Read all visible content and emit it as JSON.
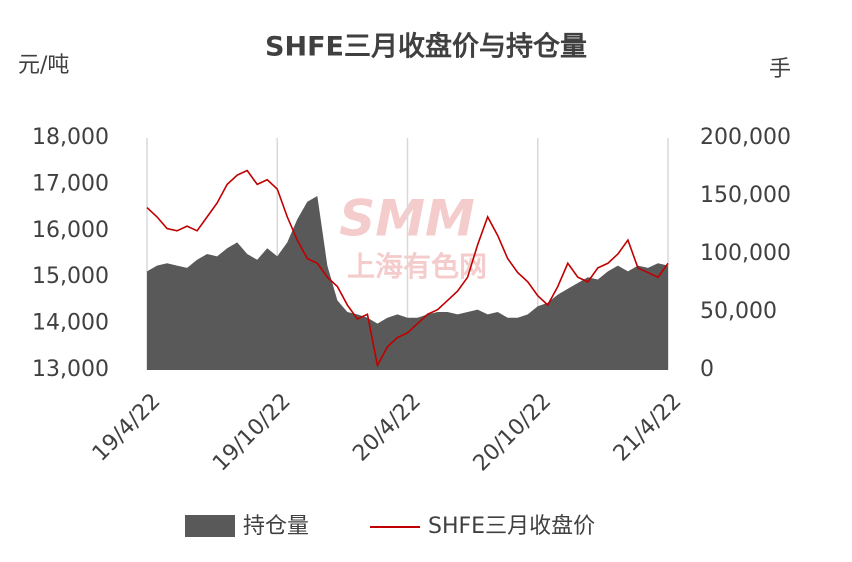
{
  "chart_data": {
    "type": "dual-area-line",
    "title": "SHFE三月收盘价与持仓量",
    "ylabel": "元/吨",
    "y2label": "手",
    "watermark": [
      "SMM",
      "上海有色网"
    ],
    "categories": [
      "19/4/22",
      null,
      null,
      null,
      null,
      null,
      null,
      null,
      null,
      null,
      null,
      null,
      null,
      "19/10/22",
      null,
      null,
      null,
      null,
      null,
      null,
      null,
      null,
      null,
      null,
      null,
      null,
      "20/4/22",
      null,
      null,
      null,
      null,
      null,
      null,
      null,
      null,
      null,
      null,
      null,
      null,
      "20/10/22",
      null,
      null,
      null,
      null,
      null,
      null,
      null,
      null,
      null,
      null,
      null,
      null,
      "21/4/22"
    ],
    "series": [
      {
        "name": "持仓量",
        "kind": "area",
        "axis": "y2",
        "color": "#595959",
        "values": [
          85000,
          90000,
          92000,
          90000,
          88000,
          95000,
          100000,
          98000,
          105000,
          110000,
          100000,
          95000,
          105000,
          98000,
          110000,
          130000,
          145000,
          150000,
          90000,
          60000,
          50000,
          48000,
          45000,
          40000,
          45000,
          48000,
          45000,
          45000,
          48000,
          50000,
          50000,
          48000,
          50000,
          52000,
          48000,
          50000,
          45000,
          45000,
          48000,
          55000,
          58000,
          65000,
          70000,
          75000,
          80000,
          78000,
          85000,
          90000,
          85000,
          90000,
          88000,
          92000,
          90000
        ]
      },
      {
        "name": "SHFE三月收盘价",
        "kind": "line",
        "axis": "y",
        "color": "#c00000",
        "values": [
          16500,
          16300,
          16050,
          16000,
          16100,
          16000,
          16300,
          16600,
          17000,
          17200,
          17300,
          17000,
          17100,
          16900,
          16300,
          15800,
          15400,
          15300,
          15000,
          14800,
          14400,
          14100,
          14200,
          13100,
          13500,
          13700,
          13800,
          14000,
          14200,
          14300,
          14500,
          14700,
          15000,
          15700,
          16300,
          15900,
          15400,
          15100,
          14900,
          14600,
          14400,
          14800,
          15300,
          15000,
          14900,
          15200,
          15300,
          15500,
          15800,
          15200,
          15100,
          15000,
          15300
        ]
      }
    ],
    "ylim": [
      13000,
      18000
    ],
    "yticks": [
      {
        "value": 13000,
        "label": "13,000"
      },
      {
        "value": 14000,
        "label": "14,000"
      },
      {
        "value": 15000,
        "label": "15,000"
      },
      {
        "value": 16000,
        "label": "16,000"
      },
      {
        "value": 17000,
        "label": "17,000"
      },
      {
        "value": 18000,
        "label": "18,000"
      }
    ],
    "y2lim": [
      0,
      200000
    ],
    "y2ticks": [
      0,
      {
        "value": 50000,
        "label": "50,000"
      },
      {
        "value": 100000,
        "label": "100,000"
      },
      {
        "value": 150000,
        "label": "150,000"
      },
      {
        "value": 200000,
        "label": "200,000"
      }
    ],
    "xgrid": true,
    "legend": "bottom"
  }
}
